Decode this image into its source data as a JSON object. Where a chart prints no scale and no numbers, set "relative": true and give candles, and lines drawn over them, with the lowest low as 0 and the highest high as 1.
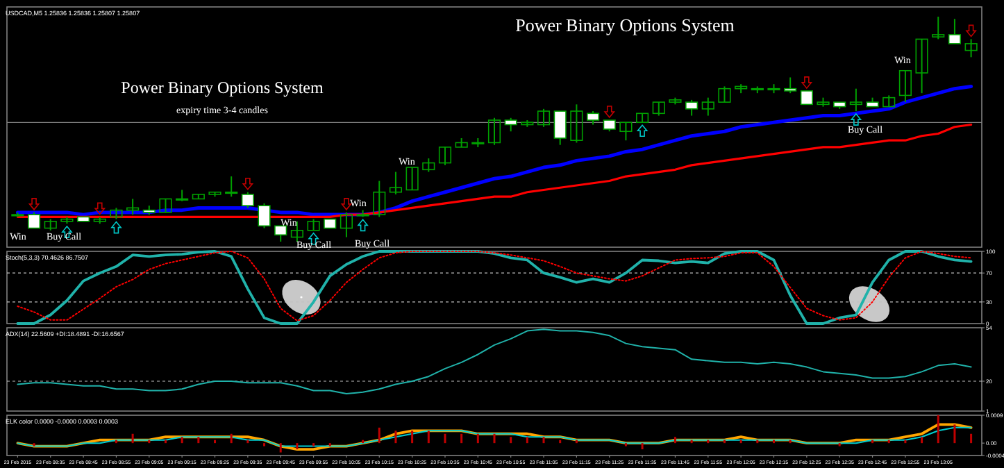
{
  "chart_data": [
    {
      "type": "candlestick",
      "title": "USDCAD,M5 1.25836 1.25836 1.25807 1.25807",
      "relative": true,
      "tick_labels": false,
      "color": "#00a000",
      "ohlc": [
        [
          0.12,
          0.13,
          0.11,
          0.12
        ],
        [
          0.12,
          0.13,
          0.06,
          0.06
        ],
        [
          0.06,
          0.1,
          0.05,
          0.09
        ],
        [
          0.09,
          0.11,
          0.08,
          0.1
        ],
        [
          0.11,
          0.11,
          0.09,
          0.09
        ],
        [
          0.09,
          0.11,
          0.08,
          0.1
        ],
        [
          0.11,
          0.15,
          0.1,
          0.14
        ],
        [
          0.14,
          0.19,
          0.12,
          0.15
        ],
        [
          0.14,
          0.16,
          0.12,
          0.13
        ],
        [
          0.13,
          0.19,
          0.13,
          0.19
        ],
        [
          0.19,
          0.23,
          0.18,
          0.19
        ],
        [
          0.19,
          0.21,
          0.19,
          0.21
        ],
        [
          0.21,
          0.22,
          0.2,
          0.22
        ],
        [
          0.22,
          0.29,
          0.2,
          0.22
        ],
        [
          0.21,
          0.22,
          0.15,
          0.16
        ],
        [
          0.16,
          0.17,
          0.06,
          0.07
        ],
        [
          0.07,
          0.07,
          0,
          0.03
        ],
        [
          0.02,
          0.09,
          0,
          0.05
        ],
        [
          0.05,
          0.1,
          0.05,
          0.09
        ],
        [
          0.1,
          0.1,
          0.06,
          0.06
        ],
        [
          0.06,
          0.13,
          0.02,
          0.12
        ],
        [
          0.12,
          0.14,
          0.11,
          0.12
        ],
        [
          0.12,
          0.27,
          0.11,
          0.22
        ],
        [
          0.22,
          0.31,
          0.21,
          0.24
        ],
        [
          0.23,
          0.33,
          0.23,
          0.33
        ],
        [
          0.32,
          0.37,
          0.31,
          0.35
        ],
        [
          0.35,
          0.42,
          0.34,
          0.42
        ],
        [
          0.42,
          0.46,
          0.42,
          0.44
        ],
        [
          0.44,
          0.46,
          0.42,
          0.44
        ],
        [
          0.44,
          0.55,
          0.43,
          0.54
        ],
        [
          0.54,
          0.55,
          0.49,
          0.52
        ],
        [
          0.52,
          0.54,
          0.51,
          0.53
        ],
        [
          0.52,
          0.59,
          0.51,
          0.58
        ],
        [
          0.58,
          0.58,
          0.43,
          0.46
        ],
        [
          0.45,
          0.61,
          0.44,
          0.58
        ],
        [
          0.57,
          0.58,
          0.52,
          0.54
        ],
        [
          0.54,
          0.54,
          0.49,
          0.5
        ],
        [
          0.49,
          0.53,
          0.45,
          0.53
        ],
        [
          0.53,
          0.57,
          0.53,
          0.57
        ],
        [
          0.57,
          0.62,
          0.56,
          0.62
        ],
        [
          0.62,
          0.64,
          0.61,
          0.63
        ],
        [
          0.62,
          0.63,
          0.56,
          0.59
        ],
        [
          0.59,
          0.64,
          0.56,
          0.62
        ],
        [
          0.62,
          0.69,
          0.62,
          0.68
        ],
        [
          0.68,
          0.7,
          0.66,
          0.69
        ],
        [
          0.68,
          0.69,
          0.66,
          0.68
        ],
        [
          0.68,
          0.7,
          0.66,
          0.68
        ],
        [
          0.68,
          0.73,
          0.66,
          0.67
        ],
        [
          0.67,
          0.67,
          0.61,
          0.61
        ],
        [
          0.61,
          0.64,
          0.6,
          0.62
        ],
        [
          0.62,
          0.62,
          0.59,
          0.6
        ],
        [
          0.61,
          0.68,
          0.58,
          0.62
        ],
        [
          0.62,
          0.64,
          0.6,
          0.6
        ],
        [
          0.6,
          0.65,
          0.6,
          0.64
        ],
        [
          0.65,
          0.76,
          0.62,
          0.76
        ],
        [
          0.75,
          0.9,
          0.66,
          0.9
        ],
        [
          0.91,
          1,
          0.9,
          0.92
        ],
        [
          0.92,
          0.99,
          0.88,
          0.88
        ],
        [
          0.85,
          0.9,
          0.82,
          0.88
        ]
      ],
      "series": [
        {
          "type": "line",
          "color": "#0000ff",
          "values": [
            0.13,
            0.13,
            0.13,
            0.13,
            0.12,
            0.13,
            0.13,
            0.13,
            0.13,
            0.14,
            0.14,
            0.15,
            0.15,
            0.15,
            0.15,
            null,
            0.13,
            0.13,
            0.12,
            0.12,
            0.12,
            0.12,
            0.13,
            0.15,
            0.18,
            0.2,
            0.22,
            0.24,
            0.26,
            0.28,
            0.29,
            0.31,
            0.33,
            0.34,
            0.36,
            0.37,
            0.38,
            0.4,
            0.41,
            0.43,
            0.45,
            0.47,
            0.48,
            0.49,
            0.51,
            0.52,
            0.53,
            0.54,
            0.55,
            0.56,
            0.56,
            0.57,
            0.58,
            0.59,
            0.62,
            0.64,
            0.66,
            0.68,
            0.69
          ]
        },
        {
          "type": "line",
          "color": "#ff0000",
          "values": [
            0.11,
            null,
            0.11,
            0.11,
            0.11,
            0.11,
            0.11,
            0.11,
            0.11,
            0.11,
            0.11,
            0.11,
            0.11,
            0.11,
            0.11,
            null,
            0.11,
            0.11,
            0.11,
            0.11,
            0.12,
            0.12,
            0.13,
            0.14,
            0.15,
            0.16,
            0.17,
            0.18,
            0.19,
            0.2,
            0.2,
            0.22,
            0.23,
            0.24,
            0.25,
            0.26,
            0.27,
            0.29,
            0.3,
            0.31,
            0.32,
            0.34,
            0.35,
            0.36,
            0.37,
            0.38,
            0.39,
            0.4,
            0.41,
            0.42,
            0.42,
            0.43,
            0.44,
            0.45,
            0.45,
            0.47,
            0.48,
            0.51,
            0.52
          ]
        }
      ],
      "ref_lines": [
        {
          "axis": "y",
          "value": 0.53,
          "color": "#808080"
        }
      ],
      "annotations": [
        "Power Binary Options System",
        "Power Binary Options System",
        "expiry time 3-4 candles",
        "Win",
        "Buy Call",
        "Win",
        "Buy Call",
        "Win",
        "Buy Call",
        "Win",
        "Buy Call",
        "Win"
      ]
    },
    {
      "type": "line",
      "title": "Stoch(5,3,3) 70.4626 86.7507",
      "tick_labels": "y",
      "ylim": [
        0,
        100
      ],
      "yticks": [
        0,
        30,
        70,
        100
      ],
      "series": [
        {
          "type": "line",
          "color": "#20b2aa",
          "values": [
            0,
            0,
            12,
            32,
            59,
            70,
            79,
            95,
            93,
            95,
            96,
            99,
            100,
            93,
            48,
            8,
            0,
            0,
            30,
            66,
            82,
            93,
            100,
            100,
            100,
            100,
            100,
            100,
            100,
            97,
            91,
            88,
            70,
            64,
            57,
            62,
            57,
            70,
            88,
            87,
            84,
            86,
            84,
            97,
            100,
            100,
            88,
            39,
            0,
            0,
            8,
            12,
            57,
            88,
            100,
            100,
            93,
            88,
            86
          ]
        },
        {
          "type": "line",
          "color": "#ff0000",
          "line_style": "dotted",
          "values": [
            24,
            16,
            5,
            5,
            20,
            35,
            51,
            61,
            75,
            83,
            88,
            93,
            98,
            100,
            91,
            62,
            21,
            4,
            11,
            32,
            57,
            75,
            91,
            98,
            100,
            100,
            100,
            100,
            100,
            98,
            95,
            91,
            87,
            79,
            70,
            66,
            62,
            59,
            66,
            77,
            88,
            90,
            91,
            93,
            98,
            98,
            79,
            50,
            21,
            11,
            5,
            8,
            30,
            64,
            91,
            100,
            97,
            93,
            91
          ]
        }
      ],
      "ref_lines": [
        {
          "axis": "y",
          "value": 30,
          "color": "#c0c0c0",
          "line_style": "dashed"
        },
        {
          "axis": "y",
          "value": 70,
          "color": "#c0c0c0",
          "line_style": "dashed"
        }
      ]
    },
    {
      "type": "line",
      "title": "ADX(14) 22.5609 +DI:18.4891 -DI:16.6567",
      "tick_labels": "y",
      "ylim": [
        1,
        54
      ],
      "yticks": [
        1,
        20,
        54
      ],
      "series": [
        {
          "type": "line",
          "color": "#20b2aa",
          "values": [
            18,
            19,
            19,
            18,
            17,
            17,
            15,
            15,
            14,
            14,
            15,
            18,
            20,
            20,
            19,
            19,
            19,
            17,
            14,
            14,
            12,
            13,
            15,
            18,
            20,
            23,
            28,
            32,
            37,
            43,
            47,
            52,
            53,
            52,
            52,
            51,
            49,
            44,
            42,
            41,
            40,
            34,
            33,
            32,
            32,
            31,
            32,
            31,
            29,
            26,
            25,
            24,
            22,
            22,
            23,
            26,
            30,
            31,
            29
          ]
        }
      ],
      "ref_lines": [
        {
          "axis": "y",
          "value": 20,
          "color": "#c0c0c0",
          "line_style": "dashed"
        }
      ]
    },
    {
      "type": "bar",
      "title": "ELK color 0.0000 -0.0000 0.0003 0.0003",
      "ylim": [
        -0.0004,
        0.0009
      ],
      "yticks": [
        -0.0004,
        {
          "value": 0,
          "label": "0.00"
        },
        0.0009
      ],
      "categories": [
        "23 Feb 2015",
        null,
        "23 Feb 08:35",
        null,
        "23 Feb 08:45",
        null,
        "23 Feb 08:55",
        null,
        "23 Feb 09:05",
        null,
        "23 Feb 09:15",
        null,
        "23 Feb 09:25",
        null,
        "23 Feb 09:35",
        null,
        "23 Feb 09:45",
        null,
        "23 Feb 09:55",
        null,
        "23 Feb 10:05",
        null,
        "23 Feb 10:15",
        null,
        "23 Feb 10:25",
        null,
        "23 Feb 10:35",
        null,
        "23 Feb 10:45",
        null,
        "23 Feb 10:55",
        null,
        "23 Feb 11:05",
        null,
        "23 Feb 11:15",
        null,
        "23 Feb 11:25",
        null,
        "23 Feb 11:35",
        null,
        "23 Feb 11:45",
        null,
        "23 Feb 11:55",
        null,
        "23 Feb 12:05",
        null,
        "23 Feb 12:15",
        null,
        "23 Feb 12:25",
        null,
        "23 Feb 12:35",
        null,
        "23 Feb 12:45",
        null,
        "23 Feb 12:55",
        null,
        "23 Feb 13:05",
        null,
        null
      ],
      "series": [
        {
          "type": "bar",
          "color": "#c00000",
          "values": [
            0,
            -0.0001,
            0,
            0,
            0,
            0,
            0.0001,
            0.0003,
            0.0001,
            0.0001,
            0.0002,
            0.0002,
            0.0001,
            0.0003,
            0.0001,
            -0.0001,
            -0.0003,
            -0.0002,
            -0.0001,
            -0.0001,
            0,
            0.0001,
            0.0005,
            0.0004,
            0.0004,
            0.0004,
            0.0003,
            0.0003,
            0.0003,
            0.0003,
            0.0002,
            0.0002,
            0.0002,
            0.0001,
            0.0001,
            0,
            0,
            -0.0001,
            -0.0002,
            0,
            0.0002,
            0.0001,
            0.0001,
            0.0001,
            0.0001,
            0.0001,
            0.0001,
            0.0001,
            0,
            0,
            -0.0001,
            0,
            0.0001,
            0.0001,
            0.0001,
            0.0002,
            0.0009,
            0.0006,
            0.0003
          ]
        },
        {
          "type": "line",
          "color": "#ffa500",
          "values": [
            0,
            -0.0001,
            -0.0001,
            -0.0001,
            0,
            0.0001,
            0.0001,
            0.0001,
            0.0001,
            0.0002,
            0.0002,
            0.0002,
            0.0002,
            0.0002,
            0.0002,
            0.0001,
            -0.0001,
            -0.0002,
            -0.0002,
            -0.0001,
            -0.0001,
            0,
            0.0001,
            0.0003,
            0.0004,
            0.0004,
            0.0004,
            0.0004,
            0.0003,
            0.0003,
            0.0003,
            0.0003,
            0.0002,
            0.0002,
            0.0001,
            0.0001,
            0.0001,
            0,
            0,
            0,
            0.0001,
            0.0001,
            0.0001,
            0.0001,
            0.0002,
            0.0001,
            0.0001,
            0.0001,
            0,
            0,
            0,
            0.0001,
            0.0001,
            0.0001,
            0.0002,
            0.0003,
            0.0006,
            0.0006,
            0.0005
          ]
        },
        {
          "type": "line",
          "color": "#00ced1",
          "values": [
            0,
            -0.0001,
            -0.0001,
            -0.0001,
            0,
            0,
            0.0001,
            0.0001,
            0.0001,
            0.0001,
            0.0002,
            0.0002,
            0.0002,
            0.0002,
            0.0001,
            0.0001,
            -0.0001,
            -0.0001,
            -0.0001,
            -0.0001,
            -0.0001,
            0,
            0.0001,
            0.0002,
            0.0003,
            0.0004,
            0.0004,
            0.0004,
            0.0003,
            0.0003,
            0.0003,
            0.0002,
            0.0002,
            0.0002,
            0.0001,
            0.0001,
            0.0001,
            0,
            0,
            0,
            0.0001,
            0.0001,
            0.0001,
            0.0001,
            0.0001,
            0.0001,
            0.0001,
            0.0001,
            0,
            0,
            0,
            0,
            0.0001,
            0.0001,
            0.0001,
            0.0002,
            0.0004,
            0.0005,
            0.0005
          ]
        }
      ]
    }
  ]
}
